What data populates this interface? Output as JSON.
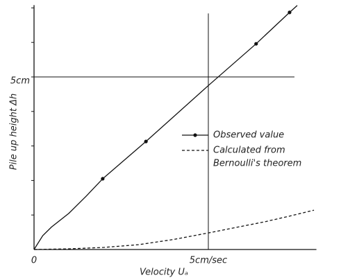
{
  "chart_data": {
    "type": "line",
    "x_label": "Velocity Uₐ",
    "y_label": "Pile up height Δh",
    "xlim": [
      0,
      8.1
    ],
    "ylim": [
      0,
      7.0
    ],
    "xticks": [
      {
        "value": 0,
        "label": "0"
      },
      {
        "value": 5,
        "label": "5cm/sec"
      }
    ],
    "yticks": [
      {
        "value": 5,
        "label": "5cm"
      }
    ],
    "y_minor_ticks": [
      1,
      2,
      3,
      4,
      6,
      7
    ],
    "series": [
      {
        "name": "Observed value",
        "color": "#111111",
        "style": "solid",
        "markers": true,
        "x": [
          1.97,
          3.21,
          6.37,
          7.33
        ],
        "values": [
          2.05,
          3.13,
          5.96,
          6.87
        ],
        "curve_x": [
          0,
          0.25,
          0.5,
          1,
          1.5,
          1.97,
          3.21,
          5,
          6.37,
          7.33,
          7.55
        ],
        "curve_values": [
          0,
          0.4,
          0.65,
          1.05,
          1.55,
          2.05,
          3.13,
          4.75,
          5.96,
          6.87,
          7.07
        ]
      },
      {
        "name": [
          "Calculated from",
          "Bernoulli's theorem"
        ],
        "color": "#111111",
        "style": "dashed",
        "markers": false,
        "curve_x": [
          0,
          1,
          2,
          3,
          4,
          5,
          6,
          6.6,
          7.3,
          8.03
        ],
        "curve_values": [
          0,
          0.02,
          0.06,
          0.14,
          0.29,
          0.48,
          0.68,
          0.8,
          0.96,
          1.14
        ]
      }
    ]
  }
}
